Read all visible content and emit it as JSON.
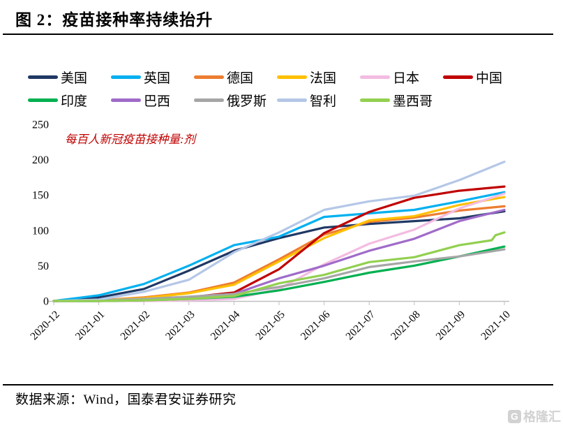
{
  "figure": {
    "title": "图 2：疫苗接种率持续抬升"
  },
  "source": {
    "text": "数据来源：Wind，国泰君安证券研究"
  },
  "watermark": {
    "icon": "G",
    "text": "格隆汇"
  },
  "chart_data": {
    "type": "line",
    "title": "",
    "annotation": "每百人新冠疫苗接种量:剂",
    "annotation_color": "#C00000",
    "axis_color": "#BFBFBF",
    "grid": false,
    "legend_position": "top",
    "legend_rows": [
      6,
      5
    ],
    "ylim": [
      0,
      250
    ],
    "yticks": [
      0,
      50,
      100,
      150,
      200,
      250
    ],
    "x_labels": [
      "2020-12",
      "2021-01",
      "2021-02",
      "2021-03",
      "2021-04",
      "2021-05",
      "2021-06",
      "2021-07",
      "2021-08",
      "2021-09",
      "2021-10"
    ],
    "ylabel": "",
    "xlabel": "",
    "series": [
      {
        "key": "usa",
        "name": "美国",
        "color": "#1F3864",
        "values": [
          0,
          5,
          17,
          43,
          71,
          89,
          104,
          109,
          113,
          117,
          127
        ]
      },
      {
        "key": "uk",
        "name": "英国",
        "color": "#00B0F0",
        "values": [
          0,
          8,
          24,
          50,
          79,
          91,
          119,
          124,
          129,
          141,
          154
        ]
      },
      {
        "key": "germany",
        "name": "德国",
        "color": "#ED7D31",
        "values": [
          0,
          1,
          5,
          12,
          26,
          59,
          94,
          112,
          118,
          128,
          134
        ]
      },
      {
        "key": "france",
        "name": "法国",
        "color": "#FFC000",
        "values": [
          0,
          1,
          4,
          11,
          23,
          56,
          89,
          114,
          120,
          136,
          147
        ]
      },
      {
        "key": "japan",
        "name": "日本",
        "color": "#F3BCE1",
        "values": [
          0,
          0,
          0,
          1,
          3,
          17,
          52,
          81,
          101,
          131,
          152
        ]
      },
      {
        "key": "china",
        "name": "中国",
        "color": "#C00000",
        "values": [
          0,
          1,
          2,
          5,
          12,
          45,
          96,
          126,
          146,
          156,
          162
        ]
      },
      {
        "key": "india",
        "name": "印度",
        "color": "#00B050",
        "values": [
          0,
          0,
          1,
          3,
          6,
          15,
          27,
          40,
          50,
          63,
          77
        ]
      },
      {
        "key": "brazil",
        "name": "巴西",
        "color": "#A06BC9",
        "values": [
          0,
          0,
          2,
          5,
          10,
          32,
          50,
          71,
          88,
          113,
          129
        ]
      },
      {
        "key": "russia",
        "name": "俄罗斯",
        "color": "#A6A6A6",
        "values": [
          0,
          1,
          3,
          6,
          10,
          20,
          32,
          48,
          56,
          63,
          73
        ]
      },
      {
        "key": "chile",
        "name": "智利",
        "color": "#B4C7E7",
        "values": [
          0,
          2,
          13,
          30,
          69,
          97,
          129,
          141,
          149,
          171,
          197
        ]
      },
      {
        "key": "mexico",
        "name": "墨西哥",
        "color": "#92D050",
        "x": [
          0,
          1,
          2,
          3,
          4,
          5,
          6,
          7,
          8,
          9,
          9.72,
          9.8,
          10
        ],
        "values": [
          0,
          0,
          1,
          3,
          7,
          25,
          37,
          55,
          62,
          79,
          86,
          93,
          97
        ]
      }
    ]
  }
}
